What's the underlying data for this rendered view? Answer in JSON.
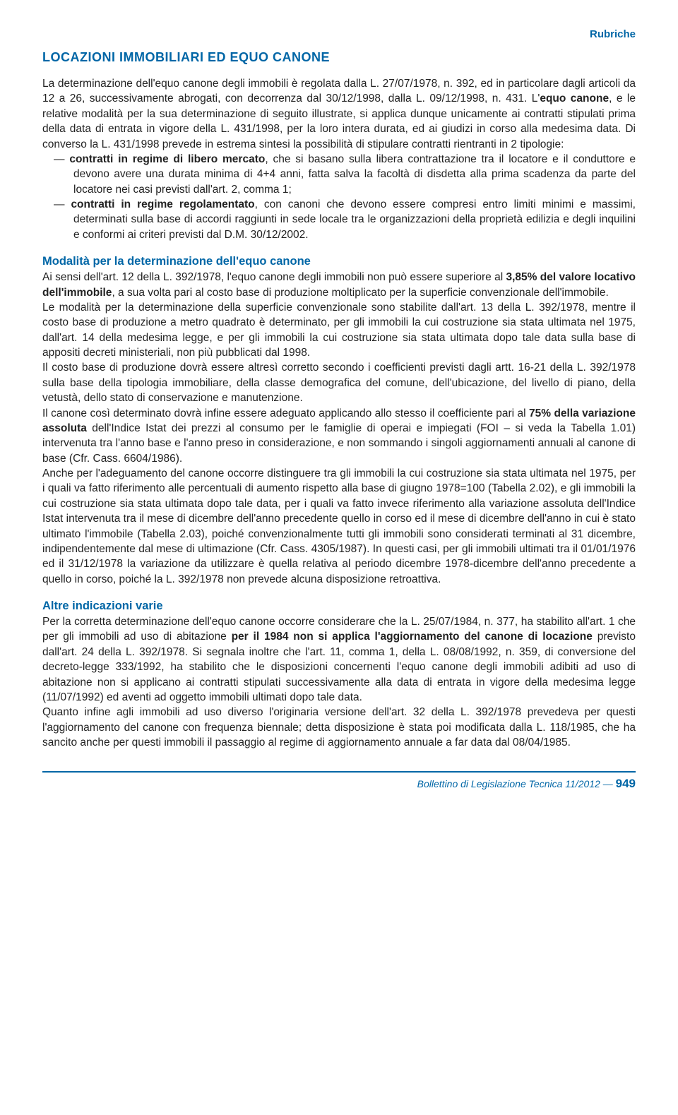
{
  "header": {
    "label": "Rubriche"
  },
  "title": "LOCAZIONI IMMOBILIARI ED EQUO CANONE",
  "intro": {
    "p1_a": "La determinazione dell'equo canone degli immobili è regolata dalla L. 27/07/1978, n. 392, ed in particolare dagli articoli da 12 a 26, successivamente abrogati, con decorrenza dal 30/12/1998, dalla L. 09/12/1998, n. 431. L'",
    "p1_b1": "equo canone",
    "p1_c": ", e le relative modalità per la sua determinazione di seguito illustrate, si applica dunque unicamente ai contratti stipulati prima della data di entrata in vigore della L. 431/1998, per la loro intera durata, ed ai giudizi in corso alla medesima data. Di converso la L. 431/1998 prevede in estrema sintesi la possibilità di stipulare contratti rientranti in 2 tipologie:",
    "bullet1_a": "— ",
    "bullet1_b": "contratti in regime di libero mercato",
    "bullet1_c": ", che si basano sulla libera contrattazione tra il locatore e il conduttore e devono avere una durata minima di 4+4 anni, fatta salva la facoltà di disdetta alla prima scadenza da parte del locatore nei casi previsti dall'art. 2, comma 1;",
    "bullet2_a": "— ",
    "bullet2_b": "contratti in regime regolamentato",
    "bullet2_c": ", con canoni che devono essere compresi entro limiti minimi e massimi, determinati sulla base di accordi raggiunti in sede locale tra le organizzazioni della proprietà edilizia e degli inquilini e conformi ai criteri previsti dal D.M. 30/12/2002."
  },
  "sec1": {
    "header": "Modalità per la determinazione dell'equo canone",
    "p1_a": "Ai sensi dell'art. 12 della L. 392/1978, l'equo canone degli immobili non può essere superiore al ",
    "p1_b": "3,85% del valore locativo dell'immobile",
    "p1_c": ", a sua volta pari al costo base di produzione moltiplicato per la superficie convenzionale dell'immobile.",
    "p2": "Le modalità per la determinazione della superficie convenzionale sono stabilite dall'art. 13 della L. 392/1978, mentre il costo base di produzione a metro quadrato è determinato, per gli immobili la cui costruzione sia stata ultimata nel 1975, dall'art. 14 della medesima legge, e per gli immobili la cui costruzione sia stata ultimata dopo tale data sulla base di appositi decreti ministeriali, non più pubblicati dal 1998.",
    "p3": "Il costo base di produzione dovrà essere altresì corretto secondo i coefficienti previsti dagli artt. 16-21 della L. 392/1978 sulla base della tipologia immobiliare, della classe demografica del comune, dell'ubicazione, del livello di piano, della vetustà, dello stato di conservazione e manutenzione.",
    "p4_a": "Il canone così determinato dovrà infine essere adeguato applicando allo stesso il coefficiente pari al ",
    "p4_b": "75% della variazione assoluta",
    "p4_c": " dell'Indice Istat dei prezzi al consumo per le famiglie di operai e impiegati (FOI – si veda la Tabella 1.01) intervenuta tra l'anno base e l'anno preso in considerazione, e non sommando i singoli aggiornamenti annuali al canone di base (Cfr. Cass. 6604/1986).",
    "p5": "Anche per l'adeguamento del canone occorre distinguere tra gli immobili la cui costruzione sia stata ultimata nel 1975, per i quali va fatto riferimento alle percentuali di aumento rispetto alla base di giugno 1978=100 (Tabella 2.02), e gli immobili la cui costruzione sia stata ultimata dopo tale data, per i quali va fatto invece riferimento alla variazione assoluta dell'Indice Istat intervenuta tra il mese di dicembre dell'anno precedente quello in corso ed il mese di dicembre dell'anno in cui è stato ultimato l'immobile (Tabella 2.03), poiché convenzionalmente tutti gli immobili sono considerati terminati al 31 dicembre, indipendentemente dal mese di ultimazione (Cfr. Cass. 4305/1987). In questi casi, per gli immobili ultimati tra il 01/01/1976 ed il 31/12/1978 la variazione da utilizzare è quella relativa al periodo dicembre 1978-dicembre dell'anno precedente a quello in corso, poiché la L. 392/1978 non prevede alcuna disposizione retroattiva."
  },
  "sec2": {
    "header": "Altre indicazioni varie",
    "p1_a": "Per la corretta determinazione dell'equo canone occorre considerare che la L. 25/07/1984, n. 377, ha stabilito all'art. 1 che per gli immobili ad uso di abitazione ",
    "p1_b": "per il 1984 non si applica l'aggiornamento del canone di locazione",
    "p1_c": " previsto dall'art. 24 della L. 392/1978. Si segnala inoltre che l'art. 11, comma 1, della L. 08/08/1992, n. 359, di conversione del decreto-legge 333/1992, ha stabilito che le disposizioni concernenti l'equo canone degli immobili adibiti ad uso di abitazione non si applicano ai contratti stipulati successivamente alla data di entrata in vigore della medesima legge (11/07/1992) ed aventi ad oggetto immobili ultimati dopo tale data.",
    "p2": "Quanto infine agli immobili ad uso diverso l'originaria versione dell'art. 32 della L. 392/1978 prevedeva per questi l'aggiornamento del canone con frequenza biennale; detta disposizione è stata poi modificata dalla L. 118/1985, che ha sancito anche per questi immobili il passaggio al regime di aggiornamento annuale a far data dal 08/04/1985."
  },
  "footer": {
    "text": "Bollettino di Legislazione Tecnica 11/2012 — ",
    "page": "949"
  },
  "style": {
    "accent_color": "#0066a6",
    "body_color": "#222",
    "bg": "#ffffff",
    "body_fontsize": 15.5,
    "title_fontsize": 18,
    "header_fontsize": 16.5
  }
}
